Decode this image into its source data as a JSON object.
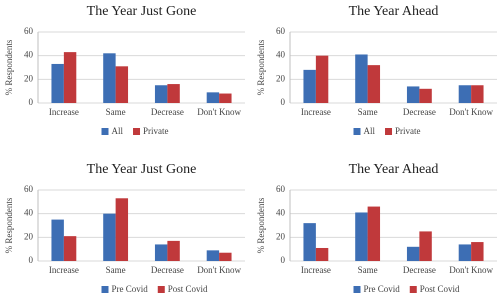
{
  "chart_data": [
    {
      "type": "bar",
      "title": "The Year Just Gone",
      "y_label": "% Respondents",
      "categories": [
        "Increase",
        "Same",
        "Decrease",
        "Don't Know"
      ],
      "series": [
        {
          "name": "All",
          "color": "#3d6eb4",
          "values": [
            33,
            42,
            15,
            9
          ]
        },
        {
          "name": "Private",
          "color": "#c0393b",
          "values": [
            43,
            31,
            16,
            8
          ]
        }
      ],
      "ylim": [
        0,
        60
      ],
      "yticks": [
        0,
        20,
        40,
        60
      ],
      "grid": true
    },
    {
      "type": "bar",
      "title": "The Year Ahead",
      "y_label": "% Respondents",
      "categories": [
        "Increase",
        "Same",
        "Decrease",
        "Don't Know"
      ],
      "series": [
        {
          "name": "All",
          "color": "#3d6eb4",
          "values": [
            28,
            41,
            14,
            15
          ]
        },
        {
          "name": "Private",
          "color": "#c0393b",
          "values": [
            40,
            32,
            12,
            15
          ]
        }
      ],
      "ylim": [
        0,
        60
      ],
      "yticks": [
        0,
        20,
        40,
        60
      ],
      "grid": true
    },
    {
      "type": "bar",
      "title": "The Year Just Gone",
      "y_label": "% Respondents",
      "categories": [
        "Increase",
        "Same",
        "Decrease",
        "Don't Know"
      ],
      "series": [
        {
          "name": "Pre Covid",
          "color": "#3d6eb4",
          "values": [
            35,
            40,
            14,
            9
          ]
        },
        {
          "name": "Post Covid",
          "color": "#c0393b",
          "values": [
            21,
            53,
            17,
            7
          ]
        }
      ],
      "ylim": [
        0,
        60
      ],
      "yticks": [
        0,
        20,
        40,
        60
      ],
      "grid": true
    },
    {
      "type": "bar",
      "title": "The Year Ahead",
      "y_label": "% Respondents",
      "categories": [
        "Increase",
        "Same",
        "Decrease",
        "Don't Know"
      ],
      "series": [
        {
          "name": "Pre Covid",
          "color": "#3d6eb4",
          "values": [
            32,
            41,
            12,
            14
          ]
        },
        {
          "name": "Post Covid",
          "color": "#c0393b",
          "values": [
            11,
            46,
            25,
            16
          ]
        }
      ],
      "ylim": [
        0,
        60
      ],
      "yticks": [
        0,
        20,
        40,
        60
      ],
      "grid": true
    }
  ]
}
